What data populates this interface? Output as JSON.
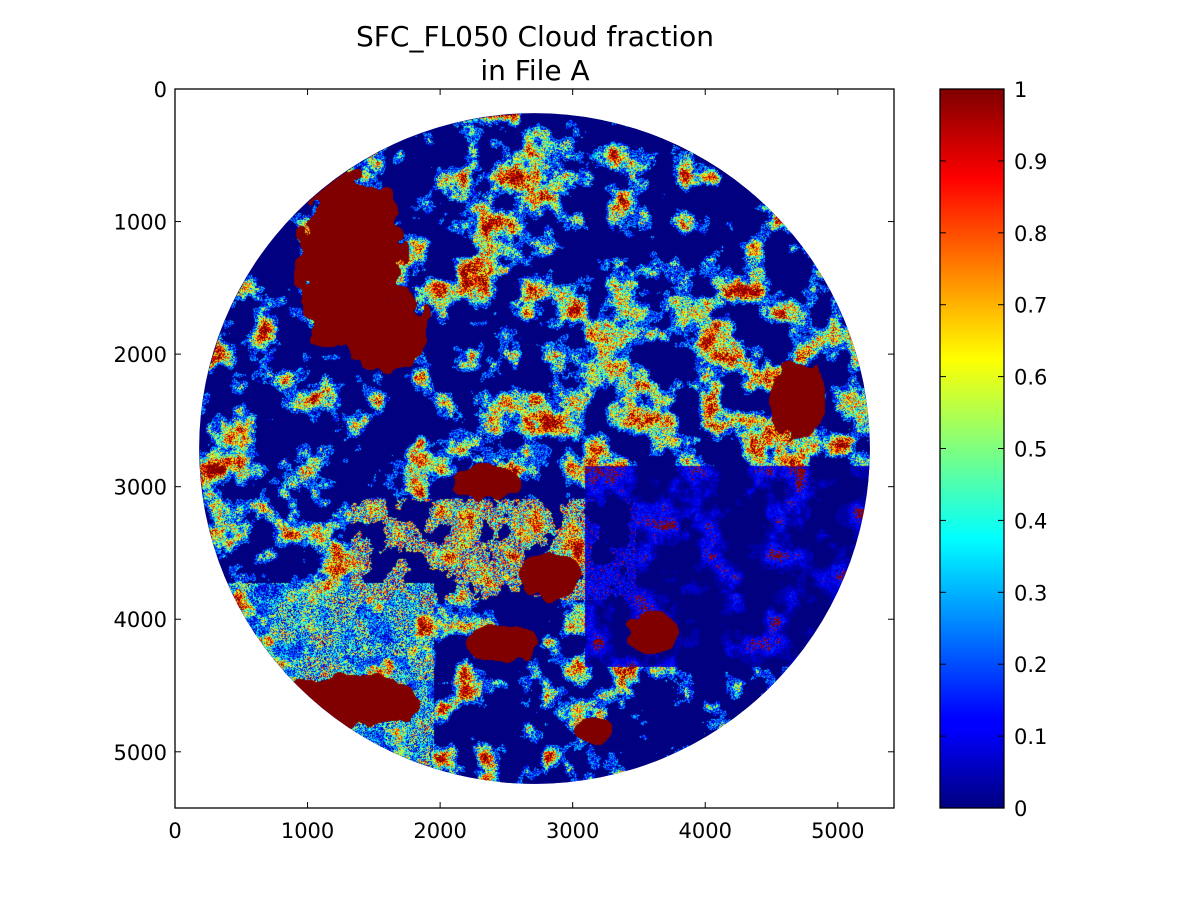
{
  "chart_data": {
    "type": "heatmap",
    "title_line1": "SFC_FL050 Cloud fraction",
    "title_line2": "in File A",
    "xlabel": "",
    "ylabel": "",
    "xlim": [
      0,
      5424
    ],
    "ylim": [
      5424,
      0
    ],
    "x_ticks": [
      0,
      1000,
      2000,
      3000,
      4000,
      5000
    ],
    "y_ticks": [
      0,
      1000,
      2000,
      3000,
      4000,
      5000
    ],
    "x_tick_labels": [
      "0",
      "1000",
      "2000",
      "3000",
      "4000",
      "5000"
    ],
    "y_tick_labels": [
      "0",
      "1000",
      "2000",
      "3000",
      "4000",
      "5000"
    ],
    "disk_center": [
      2712,
      2712
    ],
    "disk_radius": 2530,
    "colormap": "jet",
    "colorbar": {
      "range": [
        0,
        1
      ],
      "ticks": [
        0,
        0.1,
        0.2,
        0.3,
        0.4,
        0.5,
        0.6,
        0.7,
        0.8,
        0.9,
        1
      ],
      "tick_labels": [
        "0",
        "0.1",
        "0.2",
        "0.3",
        "0.4",
        "0.5",
        "0.6",
        "0.7",
        "0.8",
        "0.9",
        "1"
      ]
    },
    "colors": {
      "jet_0": "#00007f",
      "jet_0_125": "#0000ff",
      "jet_0_375": "#00ffff",
      "jet_0_625": "#ffff00",
      "jet_0_875": "#ff0000",
      "jet_1": "#7f0000",
      "background": "#ffffff",
      "axis": "#000000"
    },
    "grid": false
  }
}
